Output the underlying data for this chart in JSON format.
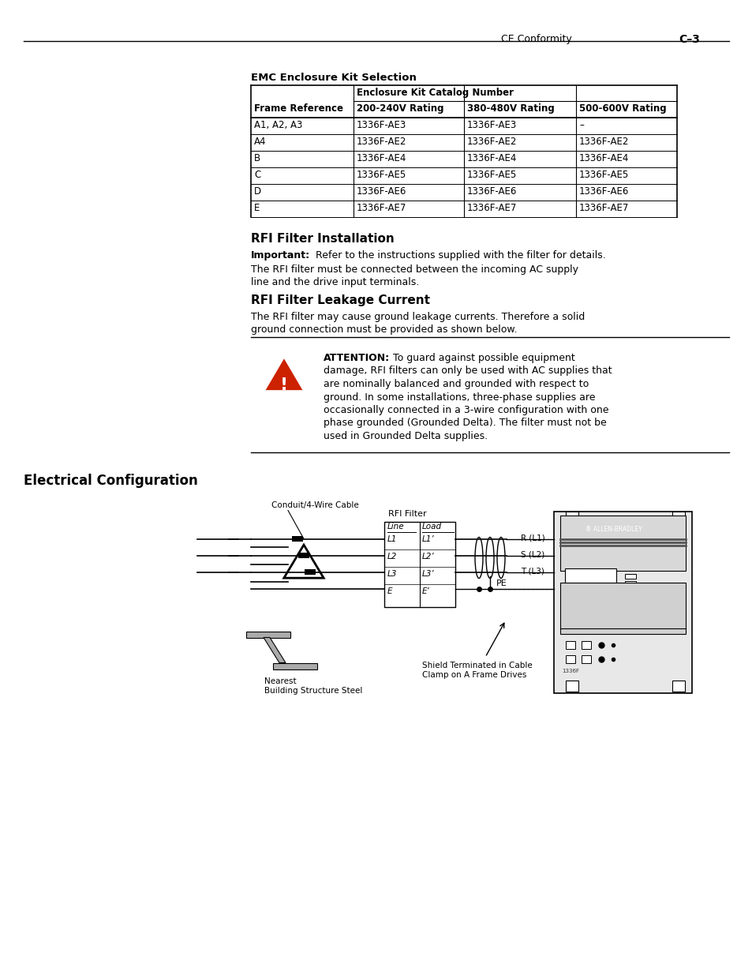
{
  "page_header_left": "CE Conformity",
  "page_header_right": "C–3",
  "emc_title": "EMC Enclosure Kit Selection",
  "table_header_span": "Enclosure Kit Catalog Number",
  "table_col0": "Frame Reference",
  "table_col1": "200-240V Rating",
  "table_col2": "380-480V Rating",
  "table_col3": "500-600V Rating",
  "table_rows": [
    [
      "A1, A2, A3",
      "1336F-AE3",
      "1336F-AE3",
      "–"
    ],
    [
      "A4",
      "1336F-AE2",
      "1336F-AE2",
      "1336F-AE2"
    ],
    [
      "B",
      "1336F-AE4",
      "1336F-AE4",
      "1336F-AE4"
    ],
    [
      "C",
      "1336F-AE5",
      "1336F-AE5",
      "1336F-AE5"
    ],
    [
      "D",
      "1336F-AE6",
      "1336F-AE6",
      "1336F-AE6"
    ],
    [
      "E",
      "1336F-AE7",
      "1336F-AE7",
      "1336F-AE7"
    ]
  ],
  "rfi_install_title": "RFI Filter Installation",
  "important_label": "Important:",
  "important_text": "   Refer to the instructions supplied with the filter for details.",
  "rfi_install_body_1": "The RFI filter must be connected between the incoming AC supply",
  "rfi_install_body_2": "line and the drive input terminals.",
  "rfi_leakage_title": "RFI Filter Leakage Current",
  "rfi_leakage_body_1": "The RFI filter may cause ground leakage currents. Therefore a solid",
  "rfi_leakage_body_2": "ground connection must be provided as shown below.",
  "attention_label": "ATTENTION:",
  "attention_rest_line1": "  To guard against possible equipment",
  "attention_lines": [
    "damage, RFI filters can only be used with AC supplies that",
    "are nominally balanced and grounded with respect to",
    "ground. In some installations, three-phase supplies are",
    "occasionally connected in a 3-wire configuration with one",
    "phase grounded (Grounded Delta). The filter must not be",
    "used in Grounded Delta supplies."
  ],
  "elec_config_title": "Electrical Configuration",
  "label_conduit": "Conduit/4-Wire Cable",
  "label_rfi_filter": "RFI Filter",
  "label_line": "Line",
  "label_load": "Load",
  "label_l1": "L1",
  "label_l2": "L2",
  "label_l3": "L3",
  "label_e": "E",
  "label_l1p": "L1’",
  "label_l2p": "L2’",
  "label_l3p": "L3’",
  "label_ep": "E’",
  "label_r": "R (L1)",
  "label_s": "S (L2)",
  "label_t": "T (L3)",
  "label_pe": "PE",
  "label_shield_1": "Shield Terminated in Cable",
  "label_shield_2": "Clamp on A Frame Drives",
  "label_nearest_1": "Nearest",
  "label_nearest_2": "Building Structure Steel",
  "bg_color": "#ffffff",
  "attn_tri_color": "#cc2200"
}
